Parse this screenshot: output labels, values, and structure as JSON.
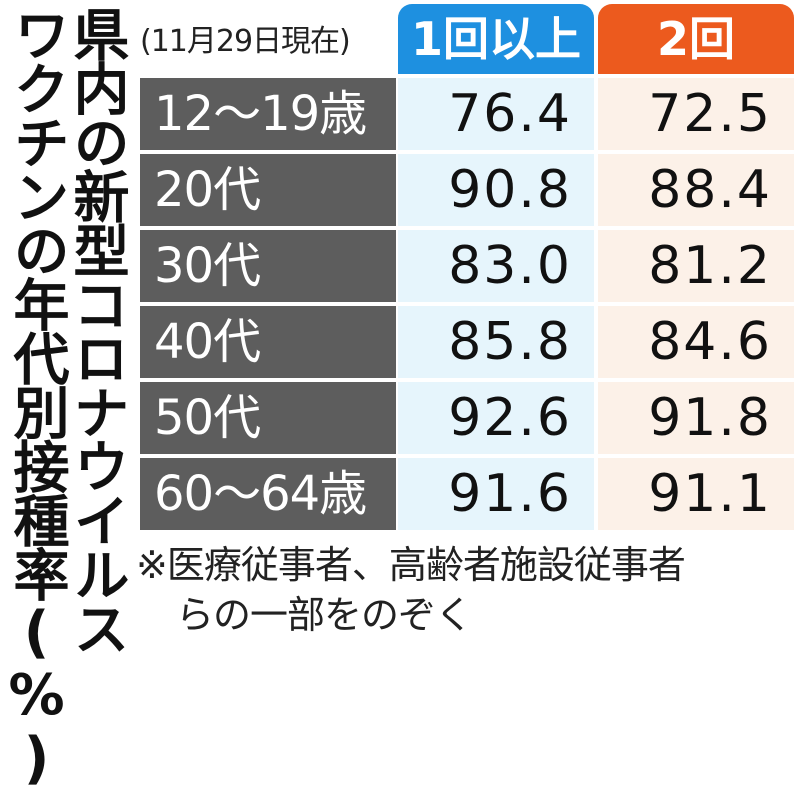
{
  "chart_data": {
    "type": "table",
    "title": "県内の新型コロナウイルスワクチンの年代別接種率(%)",
    "as_of": "(11月29日現在)",
    "columns": [
      "1回以上",
      "2回"
    ],
    "column_colors": [
      "#1e90e0",
      "#ec5a1e"
    ],
    "rows": [
      {
        "label": "12～19歳",
        "values": [
          "76.4",
          "72.5"
        ]
      },
      {
        "label": "20代",
        "values": [
          "90.8",
          "88.4"
        ]
      },
      {
        "label": "30代",
        "values": [
          "83.0",
          "81.2"
        ]
      },
      {
        "label": "40代",
        "values": [
          "85.8",
          "84.6"
        ]
      },
      {
        "label": "50代",
        "values": [
          "92.6",
          "91.8"
        ]
      },
      {
        "label": "60～64歳",
        "values": [
          "91.6",
          "91.1"
        ]
      }
    ],
    "note": [
      "※医療従事者、高齢者施設従事者",
      "らの一部をのぞく"
    ]
  },
  "title_lines": [
    "県内の新型コロナウイルス",
    "ワクチンの年代別接種率(%)"
  ]
}
